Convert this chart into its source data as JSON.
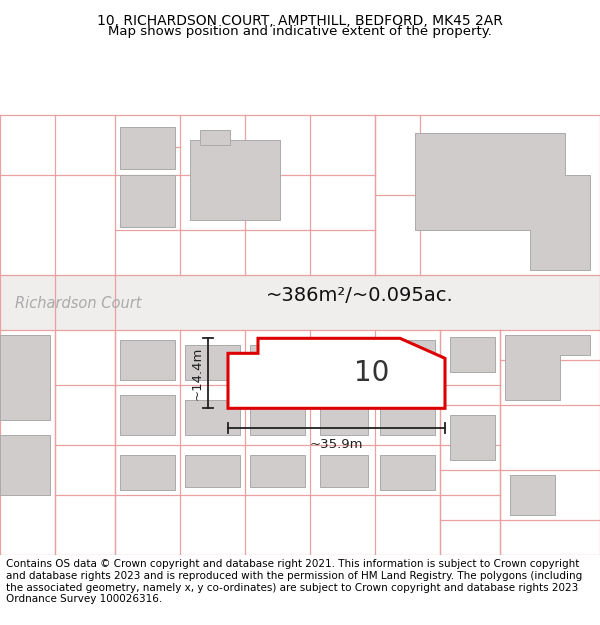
{
  "title_line1": "10, RICHARDSON COURT, AMPTHILL, BEDFORD, MK45 2AR",
  "title_line2": "Map shows position and indicative extent of the property.",
  "footer_text": "Contains OS data © Crown copyright and database right 2021. This information is subject to Crown copyright and database rights 2023 and is reproduced with the permission of HM Land Registry. The polygons (including the associated geometry, namely x, y co-ordinates) are subject to Crown copyright and database rights 2023 Ordnance Survey 100026316.",
  "area_text": "~386m²/~0.095ac.",
  "label_number": "10",
  "dim_width": "~35.9m",
  "dim_height": "~14.4m",
  "street_label": "Richardson Court",
  "map_bg": "#ffffff",
  "building_fill": "#d8d8d8",
  "building_edge": "#aaaaaa",
  "parcel_outline": "#f0a0a0",
  "plot_fill": "#ffffff",
  "plot_outline": "#dd0000",
  "road_fill": "#ececec",
  "bg_color": "#ffffff",
  "title_fontsize": 10,
  "footer_fontsize": 7.5
}
